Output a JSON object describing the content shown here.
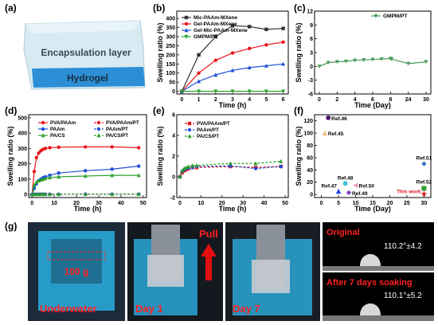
{
  "panel_labels": {
    "a": "(a)",
    "b": "(b)",
    "c": "(c)",
    "d": "(d)",
    "e": "(e)",
    "f": "(f)",
    "g": "(g)"
  },
  "panel_a": {
    "layer_top": "Encapsulation layer",
    "layer_bottom": "Hydrogel",
    "colors": {
      "top": "#c9e3ef",
      "bottom": "#2c8fd6"
    }
  },
  "chart_data": [
    {
      "id": "b",
      "type": "line",
      "xlabel": "Time (h)",
      "ylabel": "Swelling ratio (%)",
      "xlim": [
        -0.3,
        6.3
      ],
      "ylim": [
        -15,
        440
      ],
      "xticks": [
        0,
        1,
        2,
        3,
        4,
        5,
        6
      ],
      "yticks": [
        0,
        50,
        100,
        150,
        200,
        250,
        300,
        350,
        400
      ],
      "legend_position": "top-left",
      "series": [
        {
          "name": "Mic-PAAm-MXene",
          "color": "#333333",
          "marker": "square",
          "dash": "solid",
          "x": [
            0,
            1,
            2,
            3,
            4,
            5,
            6
          ],
          "y": [
            0,
            200,
            300,
            360,
            355,
            340,
            345
          ]
        },
        {
          "name": "Gel-PAAm-MXene",
          "color": "#e8141c",
          "marker": "circle",
          "dash": "solid",
          "x": [
            0,
            1,
            2,
            3,
            4,
            5,
            6
          ],
          "y": [
            0,
            100,
            170,
            210,
            235,
            255,
            270
          ]
        },
        {
          "name": "Gel-Mic-PAAm-MXene",
          "color": "#1f4fd8",
          "marker": "triangle",
          "dash": "solid",
          "x": [
            0,
            1,
            2,
            3,
            4,
            5,
            6
          ],
          "y": [
            0,
            55,
            90,
            115,
            130,
            140,
            150
          ]
        },
        {
          "name": "GMPM/PT",
          "color": "#2ca02c",
          "marker": "tri-down",
          "dash": "solid",
          "x": [
            0,
            1,
            2,
            3,
            4,
            5,
            6
          ],
          "y": [
            0,
            0,
            0,
            0,
            0,
            0,
            0
          ]
        }
      ]
    },
    {
      "id": "c",
      "type": "line",
      "xlabel": "Time (Day)",
      "ylabel": "Swelling ratio (%)",
      "xlim": [
        -1,
        32
      ],
      "ylim": [
        -6,
        12
      ],
      "xticks": [
        0,
        2,
        4,
        6,
        8,
        24,
        30
      ],
      "x_tick_labels": [
        "0",
        "2",
        "4",
        "6",
        "8",
        "24",
        "30"
      ],
      "yticks": [
        -6,
        -3,
        0,
        3,
        6,
        9,
        12
      ],
      "legend_position": "top-right",
      "series": [
        {
          "name": "GMPM/PT",
          "color": "#4a9a5a",
          "marker": "tri-down",
          "dash": "solid",
          "x": [
            0,
            1,
            2,
            3,
            4,
            5,
            6,
            7,
            8,
            9,
            24,
            30
          ],
          "y": [
            0,
            0.8,
            1.0,
            1.1,
            1.3,
            1.4,
            1.5,
            1.6,
            1.7,
            1.6,
            0.6,
            1.0
          ]
        }
      ]
    },
    {
      "id": "d",
      "type": "line",
      "xlabel": "Time (h)",
      "ylabel": "Swelling ratio (%)",
      "xlim": [
        -1.5,
        51.5
      ],
      "ylim": [
        -20,
        520
      ],
      "xticks": [
        0,
        10,
        20,
        30,
        40,
        50
      ],
      "yticks": [
        0,
        100,
        200,
        300,
        400,
        500
      ],
      "legend_position": "top",
      "series": [
        {
          "name": "PVA/PAAm",
          "color": "#e8141c",
          "marker": "circle",
          "dash": "solid",
          "x": [
            0,
            1,
            2,
            3,
            4,
            5,
            6,
            8,
            12,
            24,
            36,
            48
          ],
          "y": [
            0,
            150,
            240,
            270,
            285,
            295,
            300,
            305,
            308,
            310,
            310,
            305
          ]
        },
        {
          "name": "PVA/PAAm/PT",
          "color": "#e8141c",
          "marker": "circle",
          "dash": "dash",
          "x": [
            0,
            1,
            2,
            3,
            4,
            5,
            6,
            8,
            12,
            24,
            36,
            48
          ],
          "y": [
            0,
            1,
            1,
            1,
            1,
            1,
            1,
            1,
            1,
            2,
            2,
            2
          ]
        },
        {
          "name": "PAAm",
          "color": "#1f4fd8",
          "marker": "circle",
          "dash": "solid",
          "x": [
            0,
            1,
            2,
            3,
            4,
            5,
            6,
            8,
            12,
            24,
            36,
            48
          ],
          "y": [
            0,
            40,
            70,
            90,
            100,
            110,
            115,
            125,
            140,
            155,
            165,
            185
          ]
        },
        {
          "name": "PAAm/PT",
          "color": "#1f4fd8",
          "marker": "circle",
          "dash": "dash",
          "x": [
            0,
            1,
            2,
            3,
            4,
            5,
            6,
            8,
            12,
            24,
            36,
            48
          ],
          "y": [
            0,
            1,
            1,
            1,
            1,
            1,
            1,
            1,
            1,
            2,
            2,
            2
          ]
        },
        {
          "name": "PA/CS",
          "color": "#2ca02c",
          "marker": "triangle",
          "dash": "solid",
          "x": [
            0,
            1,
            2,
            3,
            4,
            5,
            6,
            8,
            12,
            24,
            36,
            48
          ],
          "y": [
            0,
            60,
            80,
            90,
            95,
            100,
            105,
            110,
            115,
            120,
            125,
            125
          ]
        },
        {
          "name": "PA/CS/PT",
          "color": "#2ca02c",
          "marker": "triangle",
          "dash": "dash",
          "x": [
            0,
            1,
            2,
            3,
            4,
            5,
            6,
            8,
            12,
            24,
            36,
            48
          ],
          "y": [
            0,
            1,
            1,
            1,
            1,
            1,
            1,
            1,
            1,
            2,
            2,
            2
          ]
        }
      ]
    },
    {
      "id": "e",
      "type": "line",
      "xlabel": "Time (h)",
      "ylabel": "Swelling ratio (%)",
      "xlim": [
        -1.5,
        51.5
      ],
      "ylim": [
        -2,
        6
      ],
      "xticks": [
        0,
        10,
        20,
        30,
        40,
        50
      ],
      "yticks": [
        -2,
        0,
        2,
        4,
        6
      ],
      "legend_position": "top-left",
      "series": [
        {
          "name": "PVA/PAAm/PT",
          "color": "#e8141c",
          "marker": "square",
          "dash": "dash",
          "x": [
            0,
            1,
            2,
            3,
            4,
            6,
            8,
            24,
            36,
            48
          ],
          "y": [
            0,
            0.4,
            0.6,
            0.7,
            0.8,
            0.9,
            0.9,
            1.0,
            0.9,
            1.0
          ]
        },
        {
          "name": "PAAm/PT",
          "color": "#1f4fd8",
          "marker": "circle",
          "dash": "dash",
          "x": [
            0,
            1,
            2,
            3,
            4,
            6,
            8,
            24,
            36,
            48
          ],
          "y": [
            0,
            0.5,
            0.7,
            0.8,
            0.85,
            0.9,
            1.0,
            1.05,
            0.8,
            1.0
          ]
        },
        {
          "name": "PA/CS/PT",
          "color": "#2ca02c",
          "marker": "triangle",
          "dash": "dash",
          "x": [
            0,
            1,
            2,
            3,
            4,
            6,
            8,
            24,
            36,
            48
          ],
          "y": [
            0,
            0.6,
            0.8,
            0.9,
            1.0,
            1.1,
            1.1,
            1.3,
            1.3,
            1.5
          ]
        }
      ]
    },
    {
      "id": "f",
      "type": "scatter",
      "xlabel": "Time (Day)",
      "ylabel": "Swelling ratio (%)",
      "xlim": [
        -2,
        32
      ],
      "ylim": [
        -5,
        130
      ],
      "xticks": [
        0,
        5,
        10,
        15,
        20,
        25,
        30
      ],
      "yticks": [
        0,
        20,
        40,
        60,
        80,
        100,
        120
      ],
      "points": [
        {
          "label": "Ref.46",
          "x": 2,
          "y": 125,
          "color": "#4b1a6e",
          "marker": "circle"
        },
        {
          "label": "Ref.45",
          "x": 1,
          "y": 100,
          "color": "#f0c080",
          "marker": "triangle"
        },
        {
          "label": "Ref.51",
          "x": 30,
          "y": 50,
          "color": "#3070c0",
          "marker": "diamond"
        },
        {
          "label": "Ref.48",
          "x": 7,
          "y": 18,
          "color": "#40c0d0",
          "marker": "circle"
        },
        {
          "label": "Ref.50",
          "x": 10,
          "y": 15,
          "color": "#f0a0c0",
          "marker": "tri-left"
        },
        {
          "label": "Ref.47",
          "x": 5,
          "y": 5,
          "color": "#2040e0",
          "marker": "triangle"
        },
        {
          "label": "Ref.49",
          "x": 8,
          "y": 3,
          "color": "#8040c0",
          "marker": "diamond"
        },
        {
          "label": "Ref.52",
          "x": 30,
          "y": 10,
          "color": "#30a030",
          "marker": "square"
        },
        {
          "label": "This work",
          "x": 30,
          "y": 1,
          "color": "#e0141c",
          "marker": "star"
        }
      ]
    }
  ],
  "panel_g": {
    "photos": [
      {
        "caption": "Underwater",
        "weight": "100 g",
        "caption_color": "#ff2020"
      },
      {
        "caption": "Day 1",
        "arrow_label": "Pull",
        "caption_color": "#ff2020"
      },
      {
        "caption": "Day 7",
        "caption_color": "#ff2020"
      }
    ],
    "contact": [
      {
        "title": "Original",
        "value": "110.2°±4.2"
      },
      {
        "title": "After 7 days soaking",
        "value": "110.1°±5.2"
      }
    ]
  }
}
